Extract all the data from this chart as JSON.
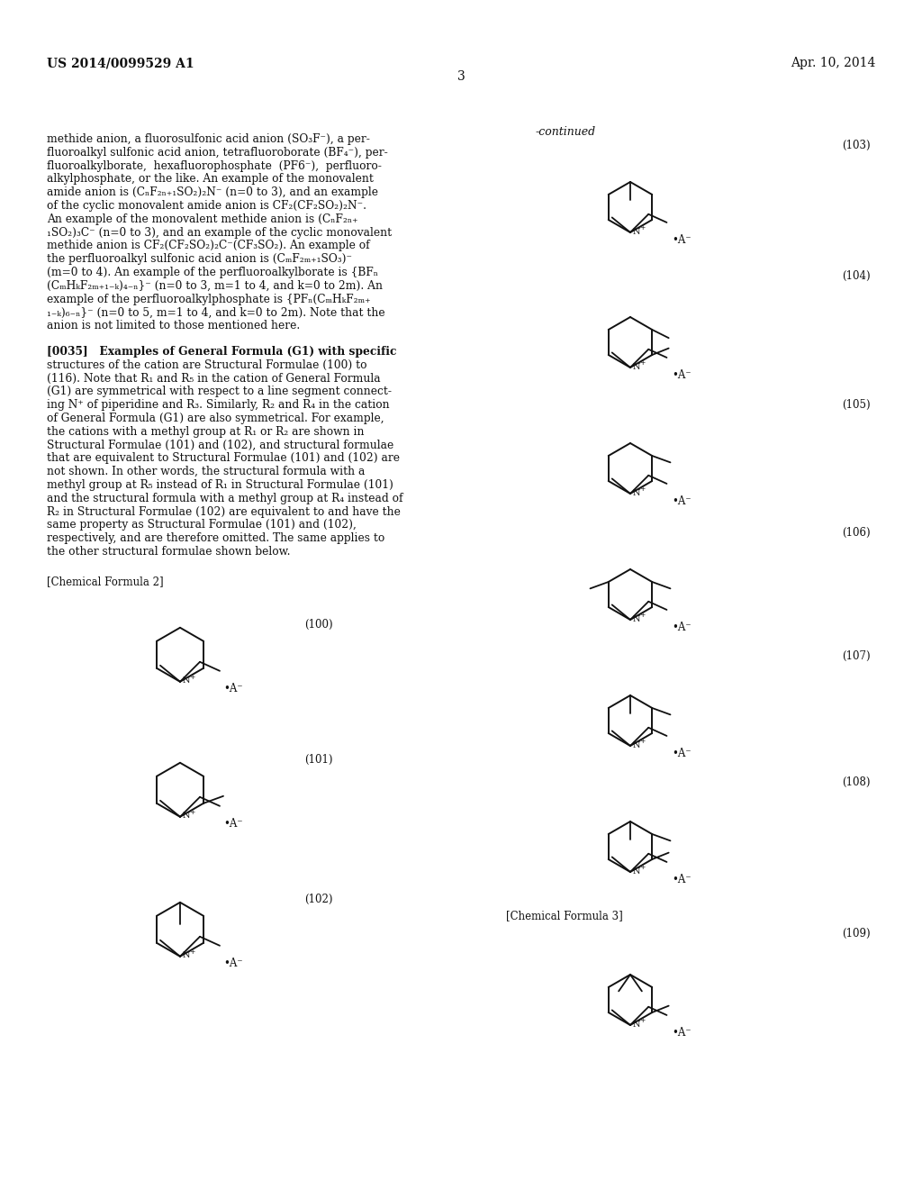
{
  "bg_color": "#ffffff",
  "header_left": "US 2014/0099529 A1",
  "header_right": "Apr. 10, 2014",
  "header_center": "3",
  "continued_text": "-continued",
  "left_text_block1": [
    "methide anion, a fluorosulfonic acid anion (SO₃F⁻), a per-",
    "fluoroalkyl sulfonic acid anion, tetrafluoroborate (BF₄⁻), per-",
    "fluoroalkylborate,  hexafluorophosphate  (PF6⁻),  perfluoro-",
    "alkylphosphate, or the like. An example of the monovalent",
    "amide anion is (CₙF₂ₙ₊₁SO₂)₂N⁻ (n=0 to 3), and an example",
    "of the cyclic monovalent amide anion is CF₂(CF₂SO₂)₂N⁻.",
    "An example of the monovalent methide anion is (CₙF₂ₙ₊",
    "₁SO₂)₃C⁻ (n=0 to 3), and an example of the cyclic monovalent",
    "methide anion is CF₂(CF₂SO₂)₂C⁻(CF₃SO₂). An example of",
    "the perfluoroalkyl sulfonic acid anion is (CₘF₂ₘ₊₁SO₃)⁻",
    "(m=0 to 4). An example of the perfluoroalkylborate is {BFₙ",
    "(CₘHₖF₂ₘ₊₁₋ₖ)₄₋ₙ}⁻ (n=0 to 3, m=1 to 4, and k=0 to 2m). An",
    "example of the perfluoroalkylphosphate is {PFₙ(CₘHₖF₂ₘ₊",
    "₁₋ₖ)₆₋ₙ}⁻ (n=0 to 5, m=1 to 4, and k=0 to 2m). Note that the",
    "anion is not limited to those mentioned here."
  ],
  "left_text_block2": [
    "[0035]   Examples of General Formula (G1) with specific",
    "structures of the cation are Structural Formulae (100) to",
    "(116). Note that R₁ and R₅ in the cation of General Formula",
    "(G1) are symmetrical with respect to a line segment connect-",
    "ing N⁺ of piperidine and R₃. Similarly, R₂ and R₄ in the cation",
    "of General Formula (G1) are also symmetrical. For example,",
    "the cations with a methyl group at R₁ or R₂ are shown in",
    "Structural Formulae (101) and (102), and structural formulae",
    "that are equivalent to Structural Formulae (101) and (102) are",
    "not shown. In other words, the structural formula with a",
    "methyl group at R₅ instead of R₁ in Structural Formulae (101)",
    "and the structural formula with a methyl group at R₄ instead of",
    "R₂ in Structural Formulae (102) are equivalent to and have the",
    "same property as Structural Formulae (101) and (102),",
    "respectively, and are therefore omitted. The same applies to",
    "the other structural formulae shown below."
  ],
  "chem_formula_label2": "[Chemical Formula 2]",
  "chem_formula_label3": "[Chemical Formula 3]",
  "formula_numbers": {
    "left": [
      [
        "(100)",
        795
      ],
      [
        "(101)",
        940
      ],
      [
        "(102)",
        1090
      ]
    ],
    "right": [
      [
        "(103)",
        155
      ],
      [
        "(104)",
        295
      ],
      [
        "(105)",
        430
      ],
      [
        "(106)",
        570
      ],
      [
        "(107)",
        710
      ],
      [
        "(108)",
        850
      ],
      [
        "(109)",
        1010
      ]
    ]
  }
}
